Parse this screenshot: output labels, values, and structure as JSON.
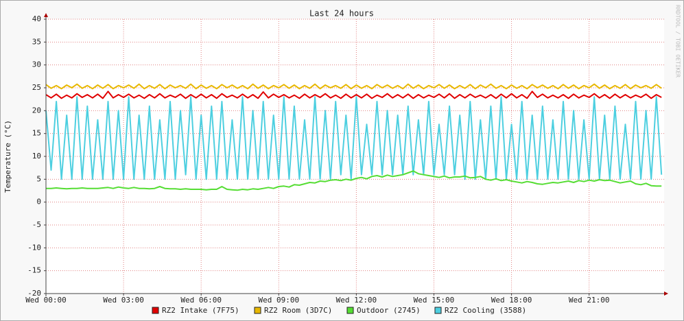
{
  "chart_data": {
    "type": "line",
    "title": "Last 24 hours",
    "y_label": "Temperature (°C)",
    "watermark": "RRDTOOL / TOBI OETIKER",
    "xlim": [
      0,
      23.9
    ],
    "xticks": [
      {
        "value": 0,
        "label": "Wed 00:00"
      },
      {
        "value": 3,
        "label": "Wed 03:00"
      },
      {
        "value": 6,
        "label": "Wed 06:00"
      },
      {
        "value": 9,
        "label": "Wed 09:00"
      },
      {
        "value": 12,
        "label": "Wed 12:00"
      },
      {
        "value": 15,
        "label": "Wed 15:00"
      },
      {
        "value": 18,
        "label": "Wed 18:00"
      },
      {
        "value": 21,
        "label": "Wed 21:00"
      }
    ],
    "ylim": [
      -20,
      40
    ],
    "yticks": [
      -20,
      -15,
      -10,
      -5,
      0,
      5,
      10,
      15,
      20,
      25,
      30,
      35,
      40
    ],
    "grid": true,
    "x": [
      0,
      0.2,
      0.4,
      0.6,
      0.8,
      1,
      1.2,
      1.4,
      1.6,
      1.8,
      2,
      2.2,
      2.4,
      2.6,
      2.8,
      3,
      3.2,
      3.4,
      3.6,
      3.8,
      4,
      4.2,
      4.4,
      4.6,
      4.8,
      5,
      5.2,
      5.4,
      5.6,
      5.8,
      6,
      6.2,
      6.4,
      6.6,
      6.8,
      7,
      7.2,
      7.4,
      7.6,
      7.8,
      8,
      8.2,
      8.4,
      8.6,
      8.8,
      9,
      9.2,
      9.4,
      9.6,
      9.8,
      10,
      10.2,
      10.4,
      10.6,
      10.8,
      11,
      11.2,
      11.4,
      11.6,
      11.8,
      12,
      12.2,
      12.4,
      12.6,
      12.8,
      13,
      13.2,
      13.4,
      13.6,
      13.8,
      14,
      14.2,
      14.4,
      14.6,
      14.8,
      15,
      15.2,
      15.4,
      15.6,
      15.8,
      16,
      16.2,
      16.4,
      16.6,
      16.8,
      17,
      17.2,
      17.4,
      17.6,
      17.8,
      18,
      18.2,
      18.4,
      18.6,
      18.8,
      19,
      19.2,
      19.4,
      19.6,
      19.8,
      20,
      20.2,
      20.4,
      20.6,
      20.8,
      21,
      21.2,
      21.4,
      21.6,
      21.8,
      22,
      22.2,
      22.4,
      22.6,
      22.8,
      23,
      23.2,
      23.4,
      23.6,
      23.8
    ],
    "series": [
      {
        "name": "RZ2 Intake (7F75)",
        "color": "#e00000",
        "values": [
          23.5,
          22.8,
          23.6,
          22.7,
          23.4,
          22.8,
          23.7,
          22.9,
          23.5,
          22.8,
          23.6,
          22.7,
          24.2,
          22.8,
          23.5,
          22.9,
          23.6,
          22.8,
          23.4,
          22.7,
          23.5,
          22.8,
          23.7,
          22.8,
          23.4,
          22.9,
          23.6,
          22.7,
          23.5,
          22.8,
          23.6,
          22.8,
          23.5,
          22.7,
          23.7,
          22.9,
          23.4,
          22.8,
          23.6,
          22.8,
          23.5,
          22.7,
          24.1,
          22.8,
          23.6,
          22.9,
          23.5,
          22.8,
          23.4,
          22.7,
          23.6,
          22.8,
          23.5,
          22.9,
          23.7,
          22.8,
          23.4,
          22.7,
          23.6,
          22.8,
          23.5,
          22.8,
          23.6,
          22.7,
          23.4,
          22.9,
          23.7,
          22.8,
          23.5,
          22.8,
          23.6,
          22.7,
          23.5,
          22.8,
          23.4,
          22.9,
          23.6,
          22.8,
          23.7,
          22.7,
          23.5,
          22.8,
          23.6,
          22.9,
          23.4,
          22.8,
          23.5,
          22.7,
          23.6,
          22.8,
          23.7,
          22.8,
          23.5,
          22.7,
          24.2,
          22.9,
          23.6,
          22.8,
          23.4,
          22.8,
          23.5,
          22.7,
          23.6,
          22.8,
          23.4,
          22.9,
          23.7,
          22.8,
          23.5,
          22.7,
          23.6,
          22.8,
          23.5,
          22.8,
          23.4,
          22.9,
          23.6,
          22.7,
          23.5,
          22.9
        ]
      },
      {
        "name": "RZ2 Room (3D7C)",
        "color": "#e8b800",
        "values": [
          25.7,
          24.9,
          25.5,
          24.8,
          25.6,
          25.0,
          25.8,
          24.9,
          25.5,
          24.8,
          25.6,
          24.9,
          25.7,
          24.8,
          25.5,
          25.0,
          25.6,
          24.9,
          25.8,
          24.8,
          25.5,
          24.9,
          25.7,
          24.8,
          25.6,
          25.0,
          25.5,
          24.9,
          25.8,
          24.8,
          25.6,
          24.9,
          25.5,
          24.8,
          25.7,
          25.0,
          25.6,
          24.9,
          25.5,
          24.8,
          25.8,
          24.9,
          25.6,
          24.8,
          25.5,
          25.0,
          25.7,
          24.9,
          25.6,
          24.8,
          25.5,
          24.9,
          25.8,
          24.8,
          25.6,
          25.0,
          25.5,
          24.9,
          25.7,
          24.8,
          25.6,
          24.9,
          25.5,
          24.8,
          25.7,
          25.0,
          25.6,
          24.9,
          25.5,
          24.8,
          25.8,
          24.9,
          25.6,
          24.8,
          25.5,
          25.0,
          25.7,
          24.9,
          25.6,
          24.8,
          25.5,
          24.9,
          25.7,
          24.8,
          25.6,
          25.0,
          25.8,
          24.9,
          25.5,
          24.8,
          25.6,
          24.9,
          25.5,
          24.8,
          25.7,
          25.0,
          25.6,
          24.9,
          25.5,
          24.8,
          25.7,
          24.9,
          25.6,
          24.8,
          25.5,
          25.0,
          25.8,
          24.9,
          25.6,
          24.8,
          25.5,
          24.9,
          25.7,
          24.8,
          25.6,
          25.0,
          25.5,
          24.9,
          25.7,
          24.9
        ]
      },
      {
        "name": "Outdoor (2745)",
        "color": "#55dd33",
        "values": [
          3.0,
          3.0,
          3.1,
          3.0,
          2.9,
          3.0,
          3.0,
          3.1,
          3.0,
          3.0,
          3.0,
          3.1,
          3.2,
          3.0,
          3.3,
          3.1,
          3.0,
          3.2,
          3.0,
          3.0,
          2.9,
          3.0,
          3.4,
          3.0,
          2.9,
          2.9,
          2.8,
          2.9,
          2.8,
          2.8,
          2.8,
          2.7,
          2.8,
          2.8,
          3.4,
          2.8,
          2.7,
          2.6,
          2.8,
          2.7,
          2.9,
          2.8,
          3.0,
          3.2,
          3.0,
          3.4,
          3.5,
          3.3,
          3.8,
          3.7,
          4.0,
          4.3,
          4.2,
          4.6,
          4.5,
          4.8,
          4.9,
          4.7,
          5.0,
          4.8,
          5.2,
          5.4,
          5.1,
          5.6,
          5.8,
          5.5,
          5.9,
          5.6,
          5.8,
          6.0,
          6.4,
          6.8,
          6.2,
          6.0,
          5.8,
          5.6,
          5.4,
          5.7,
          5.3,
          5.5,
          5.5,
          5.7,
          5.3,
          5.4,
          5.6,
          5.0,
          4.8,
          5.1,
          4.7,
          4.9,
          4.6,
          4.4,
          4.2,
          4.5,
          4.3,
          4.0,
          3.9,
          4.1,
          4.3,
          4.2,
          4.4,
          4.6,
          4.3,
          4.7,
          4.5,
          4.8,
          4.6,
          4.9,
          4.7,
          4.8,
          4.5,
          4.2,
          4.4,
          4.6,
          4.0,
          3.8,
          4.1,
          3.6,
          3.5,
          3.5
        ]
      },
      {
        "name": "RZ2 Cooling (3588)",
        "color": "#4dcfe0",
        "values": [
          20,
          7,
          22,
          5,
          19,
          5,
          23,
          5,
          21,
          5,
          18,
          5,
          22,
          5,
          20,
          5,
          23,
          5,
          19,
          5,
          21,
          5,
          18,
          5,
          22,
          5,
          20,
          6,
          23,
          5,
          19,
          5,
          21,
          5,
          22,
          5,
          18,
          5,
          23,
          5,
          20,
          5,
          22,
          5,
          19,
          5,
          23,
          5,
          21,
          5,
          18,
          5,
          23,
          5,
          20,
          5,
          22,
          6,
          19,
          5,
          23,
          6,
          17,
          6,
          22,
          6,
          20,
          6,
          19,
          6,
          21,
          6,
          18,
          6,
          22,
          6,
          17,
          6,
          21,
          6,
          19,
          5,
          22,
          5,
          18,
          5,
          21,
          5,
          23,
          5,
          17,
          5,
          22,
          5,
          19,
          5,
          21,
          5,
          18,
          5,
          22,
          5,
          20,
          5,
          18,
          5,
          23,
          5,
          19,
          5,
          21,
          5,
          17,
          5,
          22,
          5,
          20,
          5,
          23,
          6
        ]
      }
    ]
  }
}
